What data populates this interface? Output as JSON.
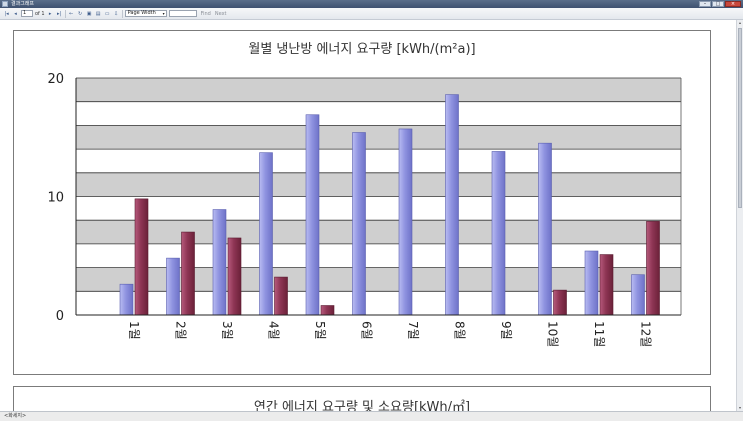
{
  "window": {
    "title": "결과그래프",
    "buttons": {
      "minimize": "–",
      "maximize": "□",
      "close": "×"
    }
  },
  "toolbar": {
    "first_icon": "first-page-icon",
    "prev_icon": "prev-page-icon",
    "page_value": "1",
    "page_of": "of 1",
    "next_icon": "next-page-icon",
    "last_icon": "last-page-icon",
    "zoom_value": "Page Width",
    "find_label": "Find",
    "next_label": "Next"
  },
  "statusbar": {
    "text": "<화세지>"
  },
  "chart_data": {
    "type": "bar",
    "title": "월별 냉난방 에너지 요구량 [kWh/(m²a)]",
    "categories": [
      "1월",
      "2월",
      "3월",
      "4월",
      "5월",
      "6월",
      "7월",
      "8월",
      "9월",
      "10월",
      "11월",
      "12월"
    ],
    "series": [
      {
        "name": "",
        "color": "#8f93e0",
        "values": [
          2.6,
          4.8,
          8.9,
          13.7,
          16.9,
          15.4,
          15.7,
          18.6,
          13.8,
          14.5,
          5.4,
          3.4
        ]
      },
      {
        "name": "",
        "color": "#8e3554",
        "values": [
          9.8,
          7.0,
          6.5,
          3.2,
          0.8,
          0,
          0,
          0,
          0,
          2.1,
          5.1,
          7.9
        ]
      }
    ],
    "ylim": [
      0,
      20
    ],
    "yticks": [
      0,
      10,
      20
    ],
    "grid": true,
    "xlabel": "",
    "ylabel": ""
  },
  "panel2": {
    "title": "연간 에너지 요구량 및 소요량[kWh/㎡]"
  }
}
